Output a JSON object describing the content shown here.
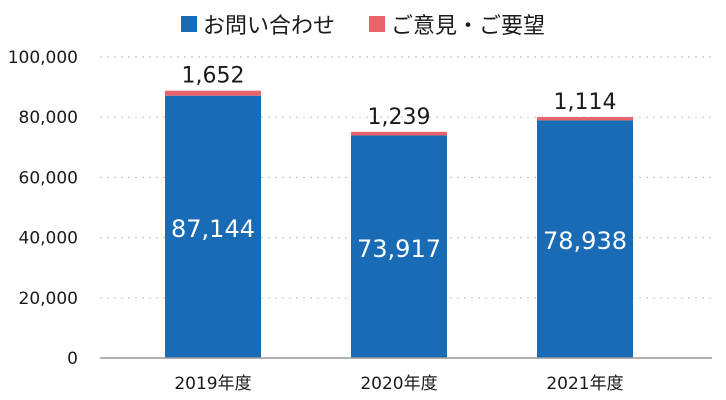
{
  "colors": {
    "inquiries": "#1a6bb5",
    "opinions": "#e8636a",
    "grid": "#c8c8c8",
    "axis": "#999999"
  },
  "chart_data": {
    "type": "bar",
    "stacked": true,
    "categories": [
      "2019年度",
      "2020年度",
      "2021年度"
    ],
    "series": [
      {
        "name": "お問い合わせ",
        "values": [
          87144,
          73917,
          78938
        ]
      },
      {
        "name": "ご意見・ご要望",
        "values": [
          1652,
          1239,
          1114
        ]
      }
    ],
    "data_labels": {
      "inquiries": [
        "87,144",
        "73,917",
        "78,938"
      ],
      "opinions": [
        "1,652",
        "1,239",
        "1,114"
      ]
    },
    "ylim": [
      0,
      100000
    ],
    "yticks": [
      0,
      20000,
      40000,
      60000,
      80000,
      100000
    ],
    "ytick_labels": [
      "0",
      "20,000",
      "40,000",
      "60,000",
      "80,000",
      "100,000"
    ],
    "grid": true,
    "legend_position": "top-center"
  }
}
